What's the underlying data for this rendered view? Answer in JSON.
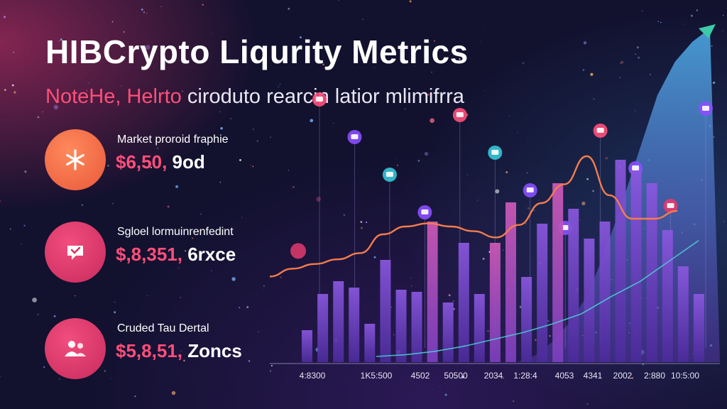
{
  "header": {
    "title": "HIBCrypto Liqurity Metrics",
    "subtitle_lead": "NoteHe, Helrto",
    "subtitle_rest": " ciroduto rearcin latior mlimifrra"
  },
  "metrics": [
    {
      "label": "Market proroid fraphie",
      "value": "$6,50,",
      "unit": " 9od",
      "icon": "asterisk-icon",
      "color": "#f06a46"
    },
    {
      "label": "Sgloel lormuinrenfedint",
      "value": "$,8,351,",
      "unit": " 6rxce",
      "icon": "chat-bubble-icon",
      "color": "#e33a6d"
    },
    {
      "label": "Cruded Tau Dertal",
      "value": "$5,8,51,",
      "unit": " Zoncs",
      "icon": "people-icon",
      "color": "#e33a6d"
    }
  ],
  "colors": {
    "accent": "#ff4f7a",
    "orange_line": "#f47c4c",
    "teal_line": "#4ec9d6",
    "bar": "#6e3fc0",
    "bar_highlight": "#d05ab8",
    "area": "#4f6fd0"
  },
  "chart_data": {
    "type": "bar",
    "x_tick_labels": [
      "4:8300",
      "1K5:500",
      "4502",
      "50500",
      "2034",
      "1:28:4",
      "4053",
      "4341",
      "2002",
      "2:880",
      "10:5:00"
    ],
    "bars": [
      0.15,
      0.32,
      0.38,
      0.35,
      0.18,
      0.48,
      0.34,
      0.33,
      0.66,
      0.28,
      0.56,
      0.32,
      0.56,
      0.75,
      0.4,
      0.65,
      0.84,
      0.72,
      0.58,
      0.66,
      0.95,
      0.9,
      0.84,
      0.62,
      0.45,
      0.32
    ],
    "highlighted_bars": [
      8,
      12,
      13,
      16
    ],
    "orange_line": [
      0.23,
      0.28,
      0.31,
      0.34,
      0.38,
      0.5,
      0.55,
      0.57,
      0.55,
      0.52,
      0.48,
      0.56,
      0.7,
      0.82,
      1.0,
      0.75,
      0.6,
      0.6,
      0.65
    ],
    "teal_line": [
      0.0,
      0.01,
      0.03,
      0.06,
      0.1,
      0.14,
      0.19,
      0.25,
      0.35,
      0.44,
      0.56,
      0.68
    ],
    "area_profile": [
      0.0,
      0.02,
      0.06,
      0.12,
      0.2,
      0.33,
      0.48,
      0.64,
      0.8,
      0.9,
      0.96,
      1.0
    ],
    "markers": [
      {
        "color": "#ff4f7a",
        "icon": "shopping-bag-icon"
      },
      {
        "color": "#8a4fff",
        "icon": "flag-icon"
      },
      {
        "color": "#36c6d6",
        "icon": "triangle-icon"
      },
      {
        "color": "#8a4fff",
        "icon": "wallet-icon"
      },
      {
        "color": "#ff4f7a",
        "icon": "bag-icon"
      },
      {
        "color": "#36c6d6",
        "icon": "diamond-icon"
      },
      {
        "color": "#8a4fff",
        "icon": "cart-icon"
      },
      {
        "color": "#8a4fff",
        "icon": "chart-icon"
      },
      {
        "color": "#ff4f7a",
        "icon": "tag-icon"
      },
      {
        "color": "#8a4fff",
        "icon": "card-icon"
      },
      {
        "color": "#e33a6d",
        "icon": "shop-icon"
      },
      {
        "color": "#8a4fff",
        "icon": "flag-icon"
      }
    ],
    "grid": false
  }
}
